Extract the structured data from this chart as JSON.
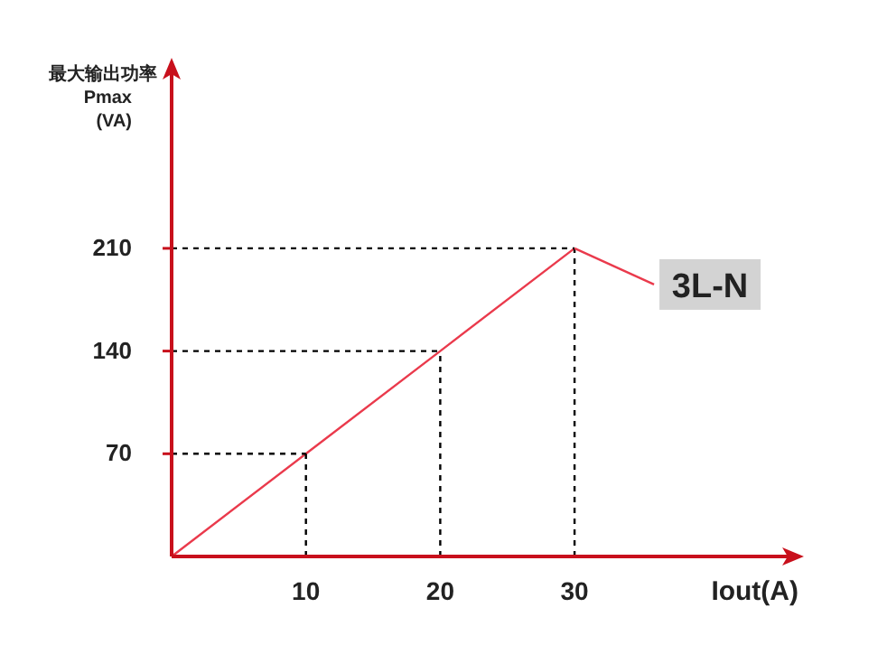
{
  "chart_data": {
    "type": "line",
    "xlabel": "Iout(A)",
    "ylabel": "最大输出功率\nPmax\n(VA)",
    "x": [
      0,
      10,
      20,
      30
    ],
    "series": [
      {
        "name": "3L-N",
        "color": "#ea3a4c",
        "values": [
          0,
          70,
          140,
          210
        ]
      },
      {
        "color": "#000000",
        "line_style": "dashed",
        "x": [
          10,
          10
        ],
        "values": [
          0,
          70
        ]
      },
      {
        "color": "#000000",
        "line_style": "dashed",
        "x": [
          20,
          20
        ],
        "values": [
          0,
          140
        ]
      },
      {
        "color": "#000000",
        "line_style": "dashed",
        "x": [
          30,
          30
        ],
        "values": [
          0,
          210
        ]
      },
      {
        "color": "#000000",
        "line_style": "dashed",
        "x": [
          0,
          10
        ],
        "values": [
          70,
          70
        ]
      },
      {
        "color": "#000000",
        "line_style": "dashed",
        "x": [
          0,
          20
        ],
        "values": [
          140,
          140
        ]
      },
      {
        "color": "#000000",
        "line_style": "dashed",
        "x": [
          0,
          30
        ],
        "values": [
          210,
          210
        ]
      }
    ],
    "xlim": [
      0,
      46
    ],
    "ylim": [
      0,
      330
    ],
    "xticks": [
      10,
      20,
      30
    ],
    "yticks": [
      70,
      140,
      210
    ],
    "legend": "right",
    "marker": "none",
    "line_style": "solid"
  }
}
